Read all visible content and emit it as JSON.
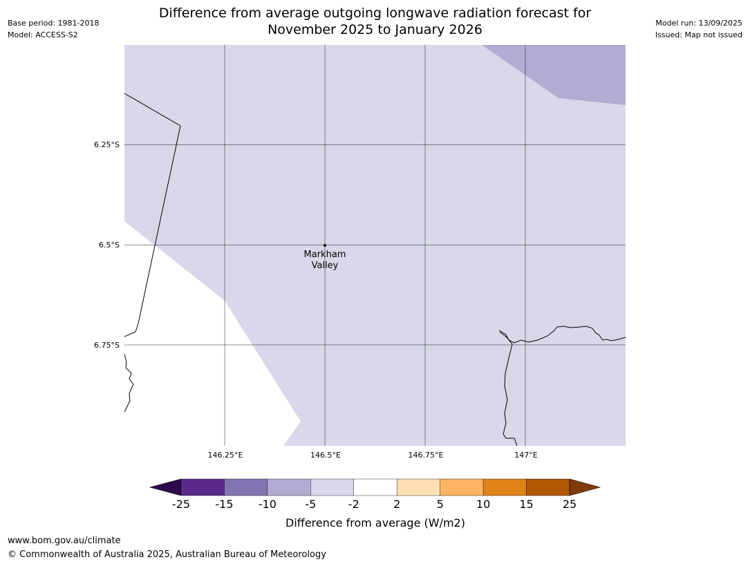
{
  "header": {
    "base_period": "Base period: 1981-2018",
    "model": "Model: ACCESS-S2",
    "model_run": "Model run: 13/09/2025",
    "issued": "Issued: Map not issued",
    "title_line1": "Difference from average outgoing longwave radiation forecast for",
    "title_line2": "November 2025 to January 2026"
  },
  "map": {
    "lon_ticks": [
      "146.25°E",
      "146.5°E",
      "146.75°E",
      "147°E"
    ],
    "lat_ticks": [
      "6.25°S",
      "6.5°S",
      "6.75°S"
    ],
    "place": {
      "name_line1": "Markham",
      "name_line2": "Valley"
    },
    "fill_colors": {
      "category_-10_-5": "#b2abd2",
      "category_-5_-2": "#d8d8ea",
      "category_-2_2": "#ffffff"
    }
  },
  "colorbar": {
    "title": "Difference from average (W/m2)",
    "tick_labels": [
      "-25",
      "-15",
      "-10",
      "-5",
      "-2",
      "2",
      "5",
      "10",
      "15",
      "25"
    ],
    "colors": [
      "#5a2b8c",
      "#8373b0",
      "#b2abd2",
      "#d8d8ea",
      "#ffffff",
      "#fedfb4",
      "#fbb563",
      "#e0821a",
      "#b25807"
    ],
    "extend_low_color": "#2d0a4e",
    "extend_high_color": "#7f3b08"
  },
  "footer": {
    "url": "www.bom.gov.au/climate",
    "copyright": "© Commonwealth of Australia 2025, Australian Bureau of Meteorology"
  }
}
